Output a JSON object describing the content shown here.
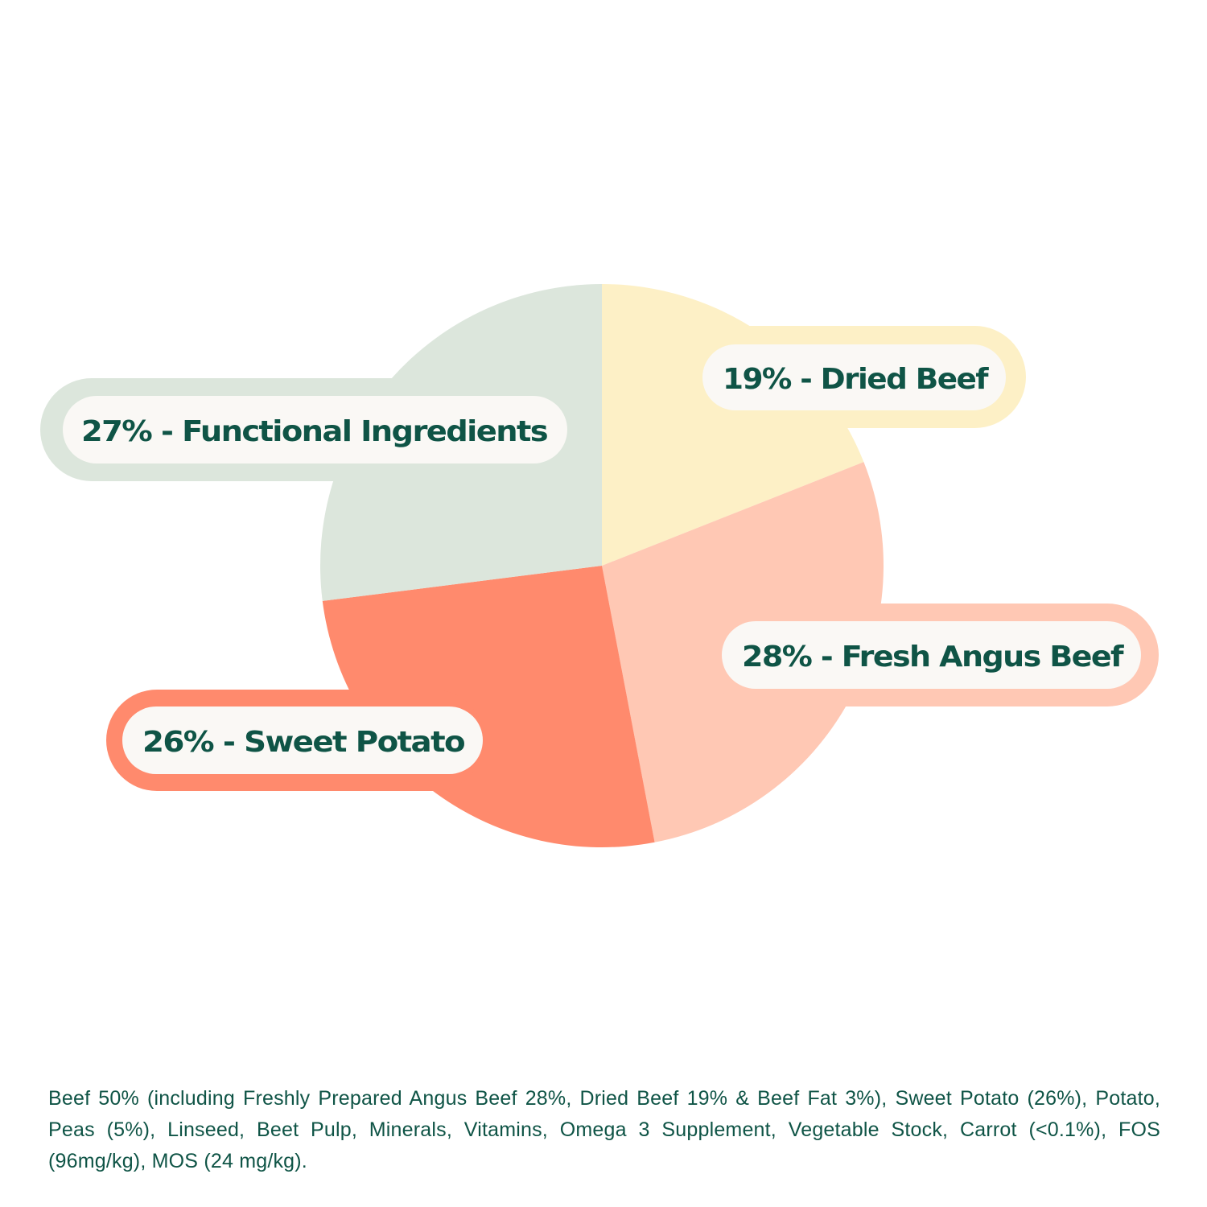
{
  "chart_data": {
    "type": "pie",
    "start": "12 o'clock, clockwise",
    "slices": [
      {
        "label": "19% - Dried Beef",
        "name": "Dried Beef",
        "value": 19,
        "color": "#fdf0c6",
        "ring_color": "#fdf0c6"
      },
      {
        "label": "28% - Fresh Angus Beef",
        "name": "Fresh Angus Beef",
        "value": 28,
        "color": "#ffc8b4",
        "ring_color": "#ffc8b4"
      },
      {
        "label": "26% - Sweet Potato",
        "name": "Sweet Potato",
        "value": 26,
        "color": "#ff8a6d",
        "ring_color": "#ff8a6d"
      },
      {
        "label": "27% - Functional Ingredients",
        "name": "Functional Ingredients",
        "value": 27,
        "color": "#dce6dc",
        "ring_color": "#dce6dc"
      }
    ],
    "label_text_color": "#0f5446",
    "label_pill_color": "#faf8f5"
  },
  "footer": {
    "ingredients": "Beef 50% (including Freshly Prepared Angus Beef 28%, Dried Beef 19% & Beef Fat 3%), Sweet Potato (26%), Potato, Peas (5%), Linseed, Beet Pulp, Minerals, Vitamins, Omega 3 Supplement, Vegetable Stock, Carrot (<0.1%), FOS (96mg/kg), MOS (24 mg/kg)."
  }
}
